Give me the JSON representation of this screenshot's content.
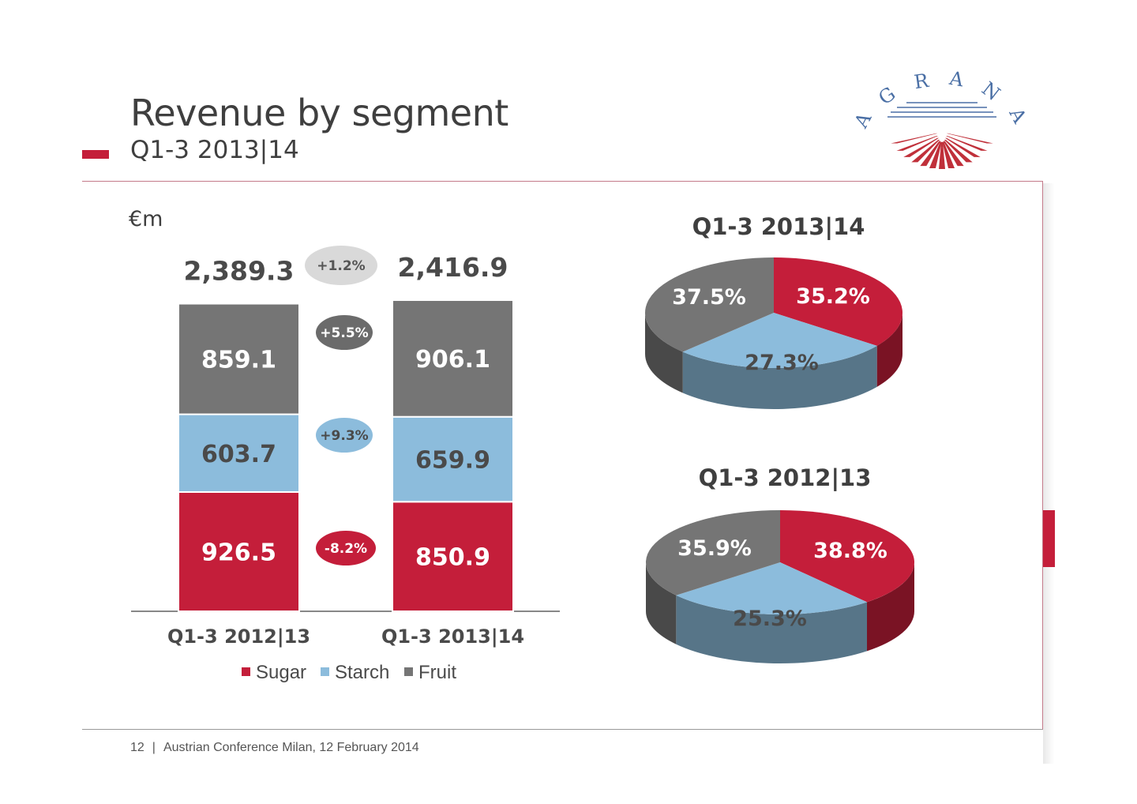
{
  "header": {
    "title": "Revenue by segment",
    "subtitle": "Q1-3 2013|14"
  },
  "logo": {
    "letters": [
      "A",
      "G",
      "R",
      "A",
      "N",
      "A"
    ],
    "colors": {
      "red": "#c0303a",
      "blue": "#4a6fa5"
    }
  },
  "footer": {
    "page": "12",
    "separator": "|",
    "text": "Austrian Conference Milan, 12 February 2014"
  },
  "chart_data": [
    {
      "type": "bar",
      "stacked": true,
      "unit_label": "€m",
      "categories": [
        "Q1-3 2012|13",
        "Q1-3 2013|14"
      ],
      "series": [
        {
          "name": "Sugar",
          "color": "#c41e3a",
          "values": [
            926.5,
            850.9
          ],
          "labels": [
            "926.5",
            "850.9"
          ]
        },
        {
          "name": "Starch",
          "color": "#8cbcdc",
          "values": [
            603.7,
            659.9
          ],
          "labels": [
            "603.7",
            "659.9"
          ]
        },
        {
          "name": "Fruit",
          "color": "#757575",
          "values": [
            859.1,
            906.1
          ],
          "labels": [
            "859.1",
            "906.1"
          ]
        }
      ],
      "totals": [
        "2,389.3",
        "2,416.9"
      ],
      "changes": [
        {
          "series": "Total",
          "label": "+1.2%",
          "color": "#d9d9d9",
          "text_color": "#555555"
        },
        {
          "series": "Fruit",
          "label": "+5.5%",
          "color": "#6b6b6b",
          "text_color": "#ffffff"
        },
        {
          "series": "Starch",
          "label": "+9.3%",
          "color": "#8cbcdc",
          "text_color": "#4a4a4a"
        },
        {
          "series": "Sugar",
          "label": "-8.2%",
          "color": "#c41e3a",
          "text_color": "#ffffff"
        }
      ],
      "legend": "bottom",
      "ylim": [
        0,
        2500
      ]
    },
    {
      "type": "pie",
      "title": "Q1-3 2013|14",
      "slices": [
        {
          "name": "Sugar",
          "value": 35.2,
          "label": "35.2%",
          "color": "#c41e3a"
        },
        {
          "name": "Starch",
          "value": 27.3,
          "label": "27.3%",
          "color": "#8cbcdc"
        },
        {
          "name": "Fruit",
          "value": 37.5,
          "label": "37.5%",
          "color": "#757575"
        }
      ]
    },
    {
      "type": "pie",
      "title": "Q1-3 2012|13",
      "slices": [
        {
          "name": "Sugar",
          "value": 38.8,
          "label": "38.8%",
          "color": "#c41e3a"
        },
        {
          "name": "Starch",
          "value": 25.3,
          "label": "25.3%",
          "color": "#8cbcdc"
        },
        {
          "name": "Fruit",
          "value": 35.9,
          "label": "35.9%",
          "color": "#757575"
        }
      ]
    }
  ]
}
